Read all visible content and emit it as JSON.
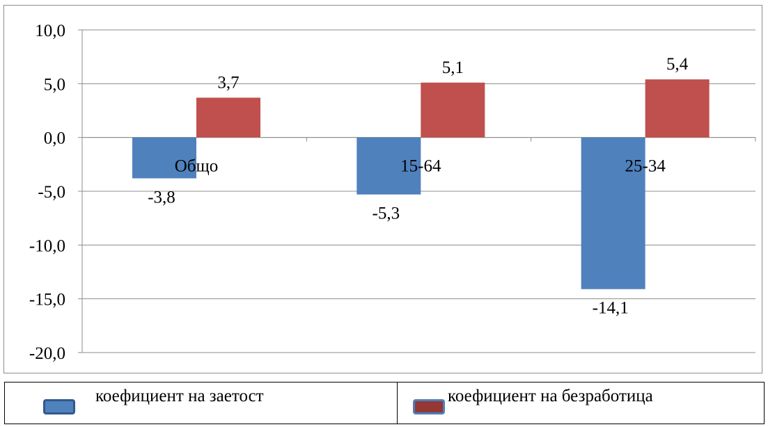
{
  "chart_data": {
    "type": "bar",
    "categories": [
      "Общо",
      "15-64",
      "25-34"
    ],
    "series": [
      {
        "name": "коефициент на заетост",
        "values": [
          -3.8,
          -5.3,
          -14.1
        ],
        "color": "#4F81BD",
        "labels": [
          "-3,8",
          "-5,3",
          "-14,1"
        ]
      },
      {
        "name": "коефициент на безработица",
        "values": [
          3.7,
          5.1,
          5.4
        ],
        "color": "#C0504D",
        "labels": [
          "3,7",
          "5,1",
          "5,4"
        ]
      }
    ],
    "ylim": [
      -20,
      10
    ],
    "yticks": [
      10,
      5,
      0,
      -5,
      -10,
      -15,
      -20
    ],
    "ytick_labels": [
      "10,0",
      "5,0",
      "0,0",
      "-5,0",
      "-10,0",
      "-15,0",
      "-20,0"
    ],
    "grid": true,
    "legend_position": "bottom",
    "title": "",
    "xlabel": "",
    "ylabel": ""
  }
}
